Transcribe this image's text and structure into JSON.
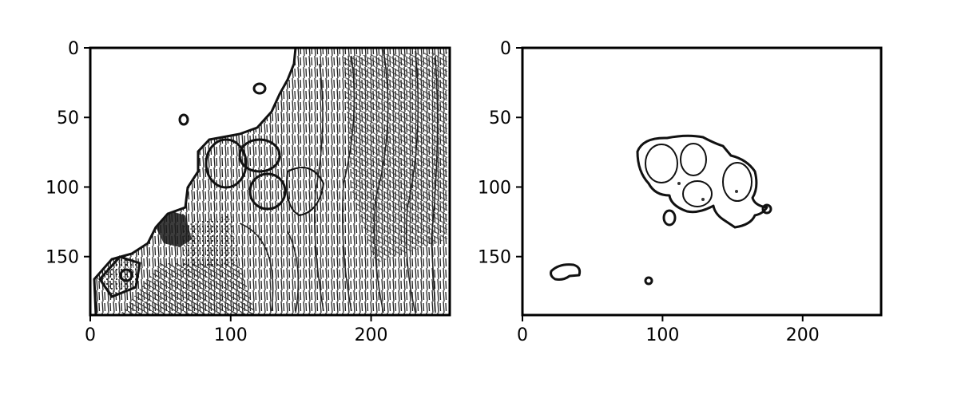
{
  "chart_data": [
    {
      "type": "image",
      "xlim": [
        0,
        256
      ],
      "ylim": [
        192,
        0
      ],
      "xticks": [
        "0",
        "100",
        "200"
      ],
      "yticks": [
        "0",
        "50",
        "100",
        "150"
      ],
      "xtick_values": [
        0,
        100,
        200
      ],
      "ytick_values": [
        0,
        50,
        100,
        150
      ],
      "colormap": "binary"
    },
    {
      "type": "image",
      "xlim": [
        0,
        256
      ],
      "ylim": [
        192,
        0
      ],
      "xticks": [
        "0",
        "100",
        "200"
      ],
      "yticks": [
        "0",
        "50",
        "100",
        "150"
      ],
      "xtick_values": [
        0,
        100,
        200
      ],
      "ytick_values": [
        0,
        50,
        100,
        150
      ],
      "colormap": "binary"
    }
  ]
}
